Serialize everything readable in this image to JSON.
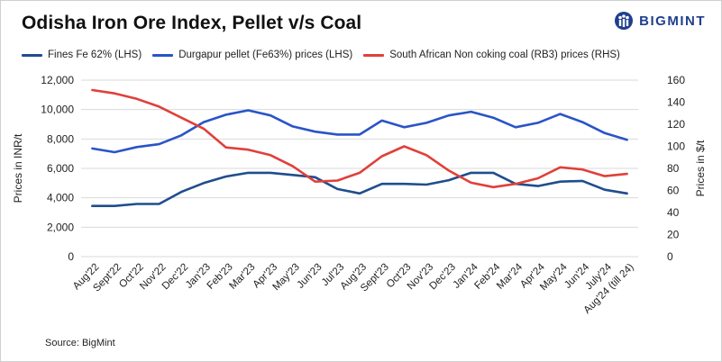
{
  "title": "Odisha Iron Ore Index, Pellet v/s Coal",
  "brand": {
    "name": "BIGMINT",
    "icon": "bigmint-logo-icon"
  },
  "source": "Source: BigMint",
  "colors": {
    "fines": "#1f4e8c",
    "pellet": "#2a54c7",
    "coal": "#e0403a",
    "grid": "#d9d9d9",
    "brand": "#1f3f8f"
  },
  "chart_data": {
    "type": "line",
    "title": "Odisha Iron Ore Index, Pellet v/s Coal",
    "categories": [
      "Aug'22",
      "Sept'22",
      "Oct'22",
      "Nov'22",
      "Dec'22",
      "Jan'23",
      "Feb'23",
      "Mar'23",
      "Apr'23",
      "May'23",
      "Jun'23",
      "Jul'23",
      "Aug'23",
      "Sept'23",
      "Oct'23",
      "Nov'23",
      "Dec'23",
      "Jan'24",
      "Feb'24",
      "Mar'24",
      "Apr'24",
      "May'24",
      "Jun'24",
      "July'24",
      "Aug'24 (till 24)"
    ],
    "ylabel": "Prices in INR/t",
    "y2label": "Prices in $/t",
    "ylim": [
      0,
      12000
    ],
    "y2lim": [
      0,
      160
    ],
    "yticks": [
      "0",
      "2,000",
      "4,000",
      "6,000",
      "8,000",
      "10,000",
      "12,000"
    ],
    "y2ticks": [
      "0",
      "20",
      "40",
      "60",
      "80",
      "100",
      "120",
      "140",
      "160"
    ],
    "grid": true,
    "legend_position": "top",
    "series": [
      {
        "name": "Fines Fe 62% (LHS)",
        "axis": "left",
        "color": "#1f4e8c",
        "values": [
          3450,
          3450,
          3580,
          3580,
          4400,
          5000,
          5450,
          5700,
          5700,
          5550,
          5400,
          4600,
          4300,
          4950,
          4950,
          4900,
          5200,
          5700,
          5700,
          4950,
          4800,
          5100,
          5150,
          4550,
          4300
        ]
      },
      {
        "name": "Durgapur pellet (Fe63%) prices (LHS)",
        "axis": "left",
        "color": "#2a54c7",
        "values": [
          7350,
          7100,
          7450,
          7650,
          8250,
          9150,
          9650,
          9950,
          9600,
          8850,
          8500,
          8300,
          8300,
          9250,
          8800,
          9100,
          9600,
          9850,
          9450,
          8800,
          9100,
          9700,
          9150,
          8400,
          7950
        ]
      },
      {
        "name": "South African Non coking coal (RB3) prices (RHS)",
        "axis": "right",
        "color": "#e0403a",
        "values": [
          151,
          148,
          143,
          136,
          126,
          116,
          99,
          97,
          92,
          82,
          68,
          69,
          76,
          91,
          100,
          92,
          78,
          67,
          63,
          66,
          71,
          81,
          79,
          73,
          75
        ]
      }
    ]
  }
}
